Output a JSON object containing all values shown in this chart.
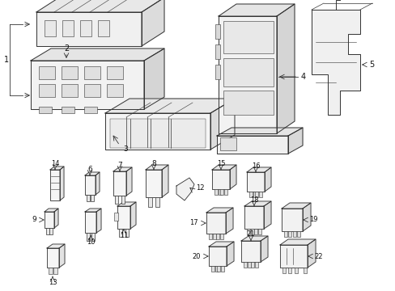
{
  "bg_color": "#ffffff",
  "line_color": "#333333",
  "text_color": "#111111",
  "fig_width": 4.89,
  "fig_height": 3.6,
  "dpi": 100
}
